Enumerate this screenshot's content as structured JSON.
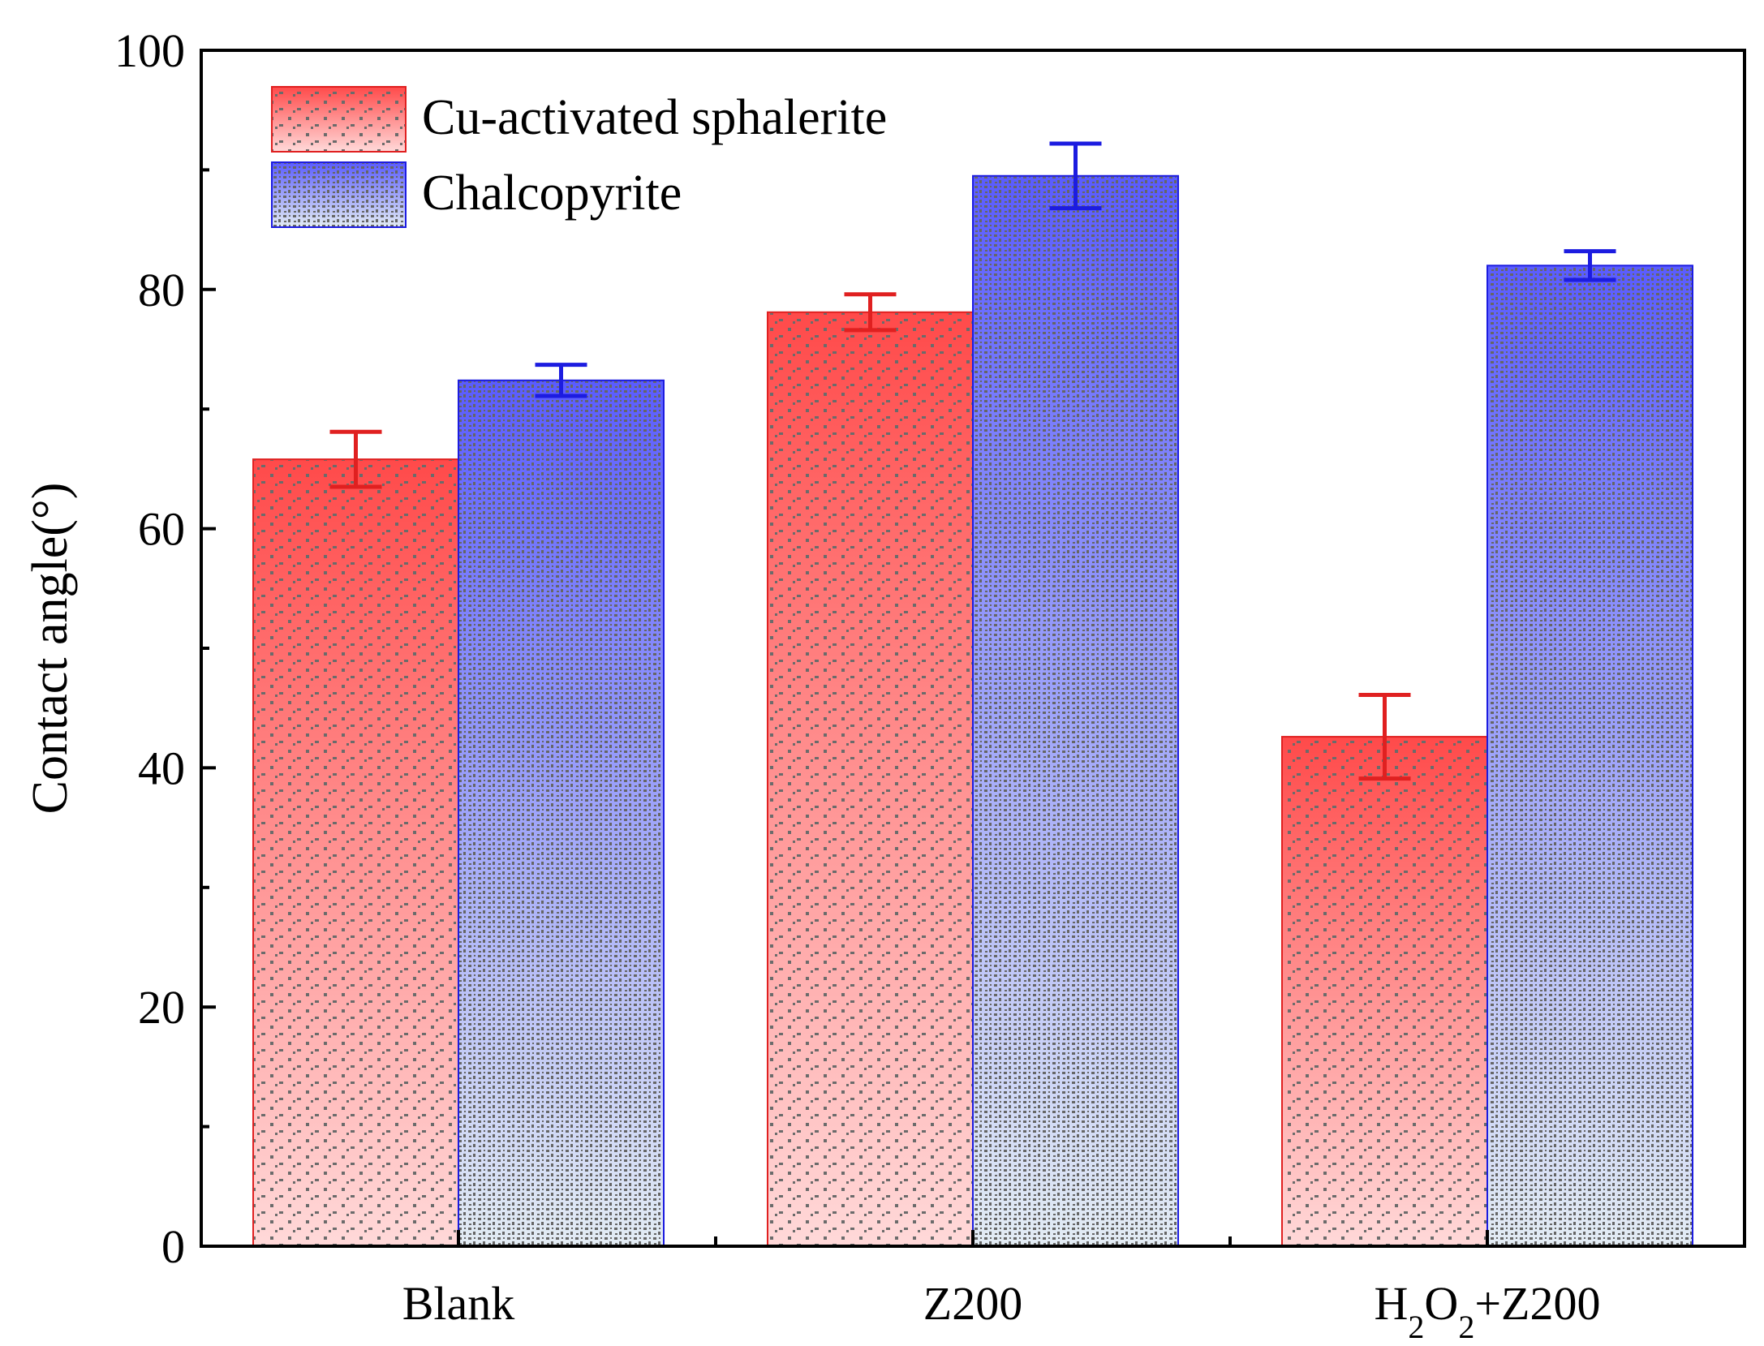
{
  "chart_data": {
    "type": "bar",
    "title": "",
    "xlabel": "",
    "ylabel": "Contact angle(°)",
    "ylim": [
      0,
      100
    ],
    "yticks": [
      0,
      20,
      40,
      60,
      80,
      100
    ],
    "categories": [
      {
        "label": "Blank",
        "parts": [
          {
            "t": "Blank",
            "sub": false
          }
        ]
      },
      {
        "label": "Z200",
        "parts": [
          {
            "t": "Z200",
            "sub": false
          }
        ]
      },
      {
        "label": "H2O2+Z200",
        "parts": [
          {
            "t": "H",
            "sub": false
          },
          {
            "t": "2",
            "sub": true
          },
          {
            "t": "O",
            "sub": false
          },
          {
            "t": "2",
            "sub": true
          },
          {
            "t": "+Z200",
            "sub": false
          }
        ]
      }
    ],
    "series": [
      {
        "name": "Cu-activated sphalerite",
        "color": "#ff4a4a",
        "light": "#ffd9d9",
        "stroke": "#e02020",
        "values": [
          65.8,
          78.1,
          42.6
        ],
        "errors": [
          2.3,
          1.5,
          3.5
        ]
      },
      {
        "name": "Chalcopyrite",
        "color": "#5a5cff",
        "light": "#e3ecf4",
        "stroke": "#1c1ce0",
        "values": [
          72.4,
          89.5,
          82.0
        ],
        "errors": [
          1.3,
          2.7,
          1.2
        ]
      }
    ],
    "legend_position": "top-left",
    "grid": false
  }
}
